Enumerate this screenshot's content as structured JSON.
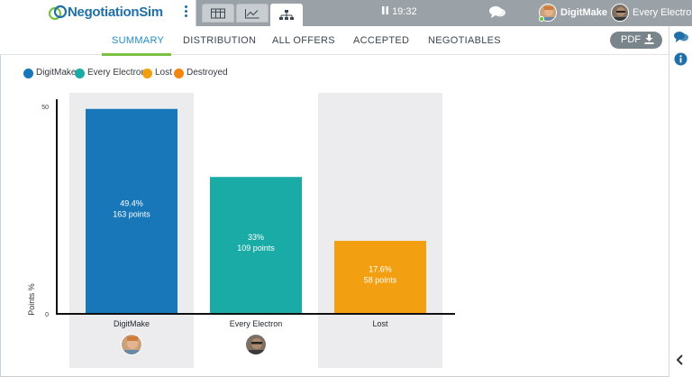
{
  "brand": {
    "name": "NegotiationSim"
  },
  "topbar": {
    "tabs": [
      "table-icon",
      "line-chart-icon",
      "hierarchy-icon"
    ],
    "clock": "19:32",
    "users": [
      {
        "name": "DigitMake"
      },
      {
        "name": "Every Electron"
      }
    ]
  },
  "nav": {
    "items": [
      "SUMMARY",
      "DISTRIBUTION",
      "ALL OFFERS",
      "ACCEPTED",
      "NEGOTIABLES"
    ],
    "active": "SUMMARY",
    "pdf_label": "PDF"
  },
  "colors": {
    "accent": "#1f8fc5",
    "nav_underline": "#7cc242",
    "digitmake": "#1877b8",
    "every_electron": "#1aaba6",
    "lost": "#f2a011",
    "destroyed": "#f2860f"
  },
  "chart_data": {
    "type": "bar",
    "categories": [
      "DigitMake",
      "Every Electron",
      "Lost"
    ],
    "values": [
      49.4,
      33,
      17.6
    ],
    "points": [
      163,
      109,
      58
    ],
    "data_labels": [
      {
        "percent": "49.4%",
        "points": "163 points"
      },
      {
        "percent": "33%",
        "points": "109 points"
      },
      {
        "percent": "17.6%",
        "points": "58 points"
      }
    ],
    "legend": [
      "DigitMake",
      "Every Electron",
      "Lost",
      "Destroyed"
    ],
    "legend_placement": "top-left",
    "ylabel": "Points %",
    "ylim": [
      0,
      50
    ],
    "yticks": [
      "0",
      "50"
    ],
    "bar_colors": [
      "#1877b8",
      "#1aaba6",
      "#f2a011"
    ],
    "highlighted_columns": [
      0,
      2
    ]
  }
}
